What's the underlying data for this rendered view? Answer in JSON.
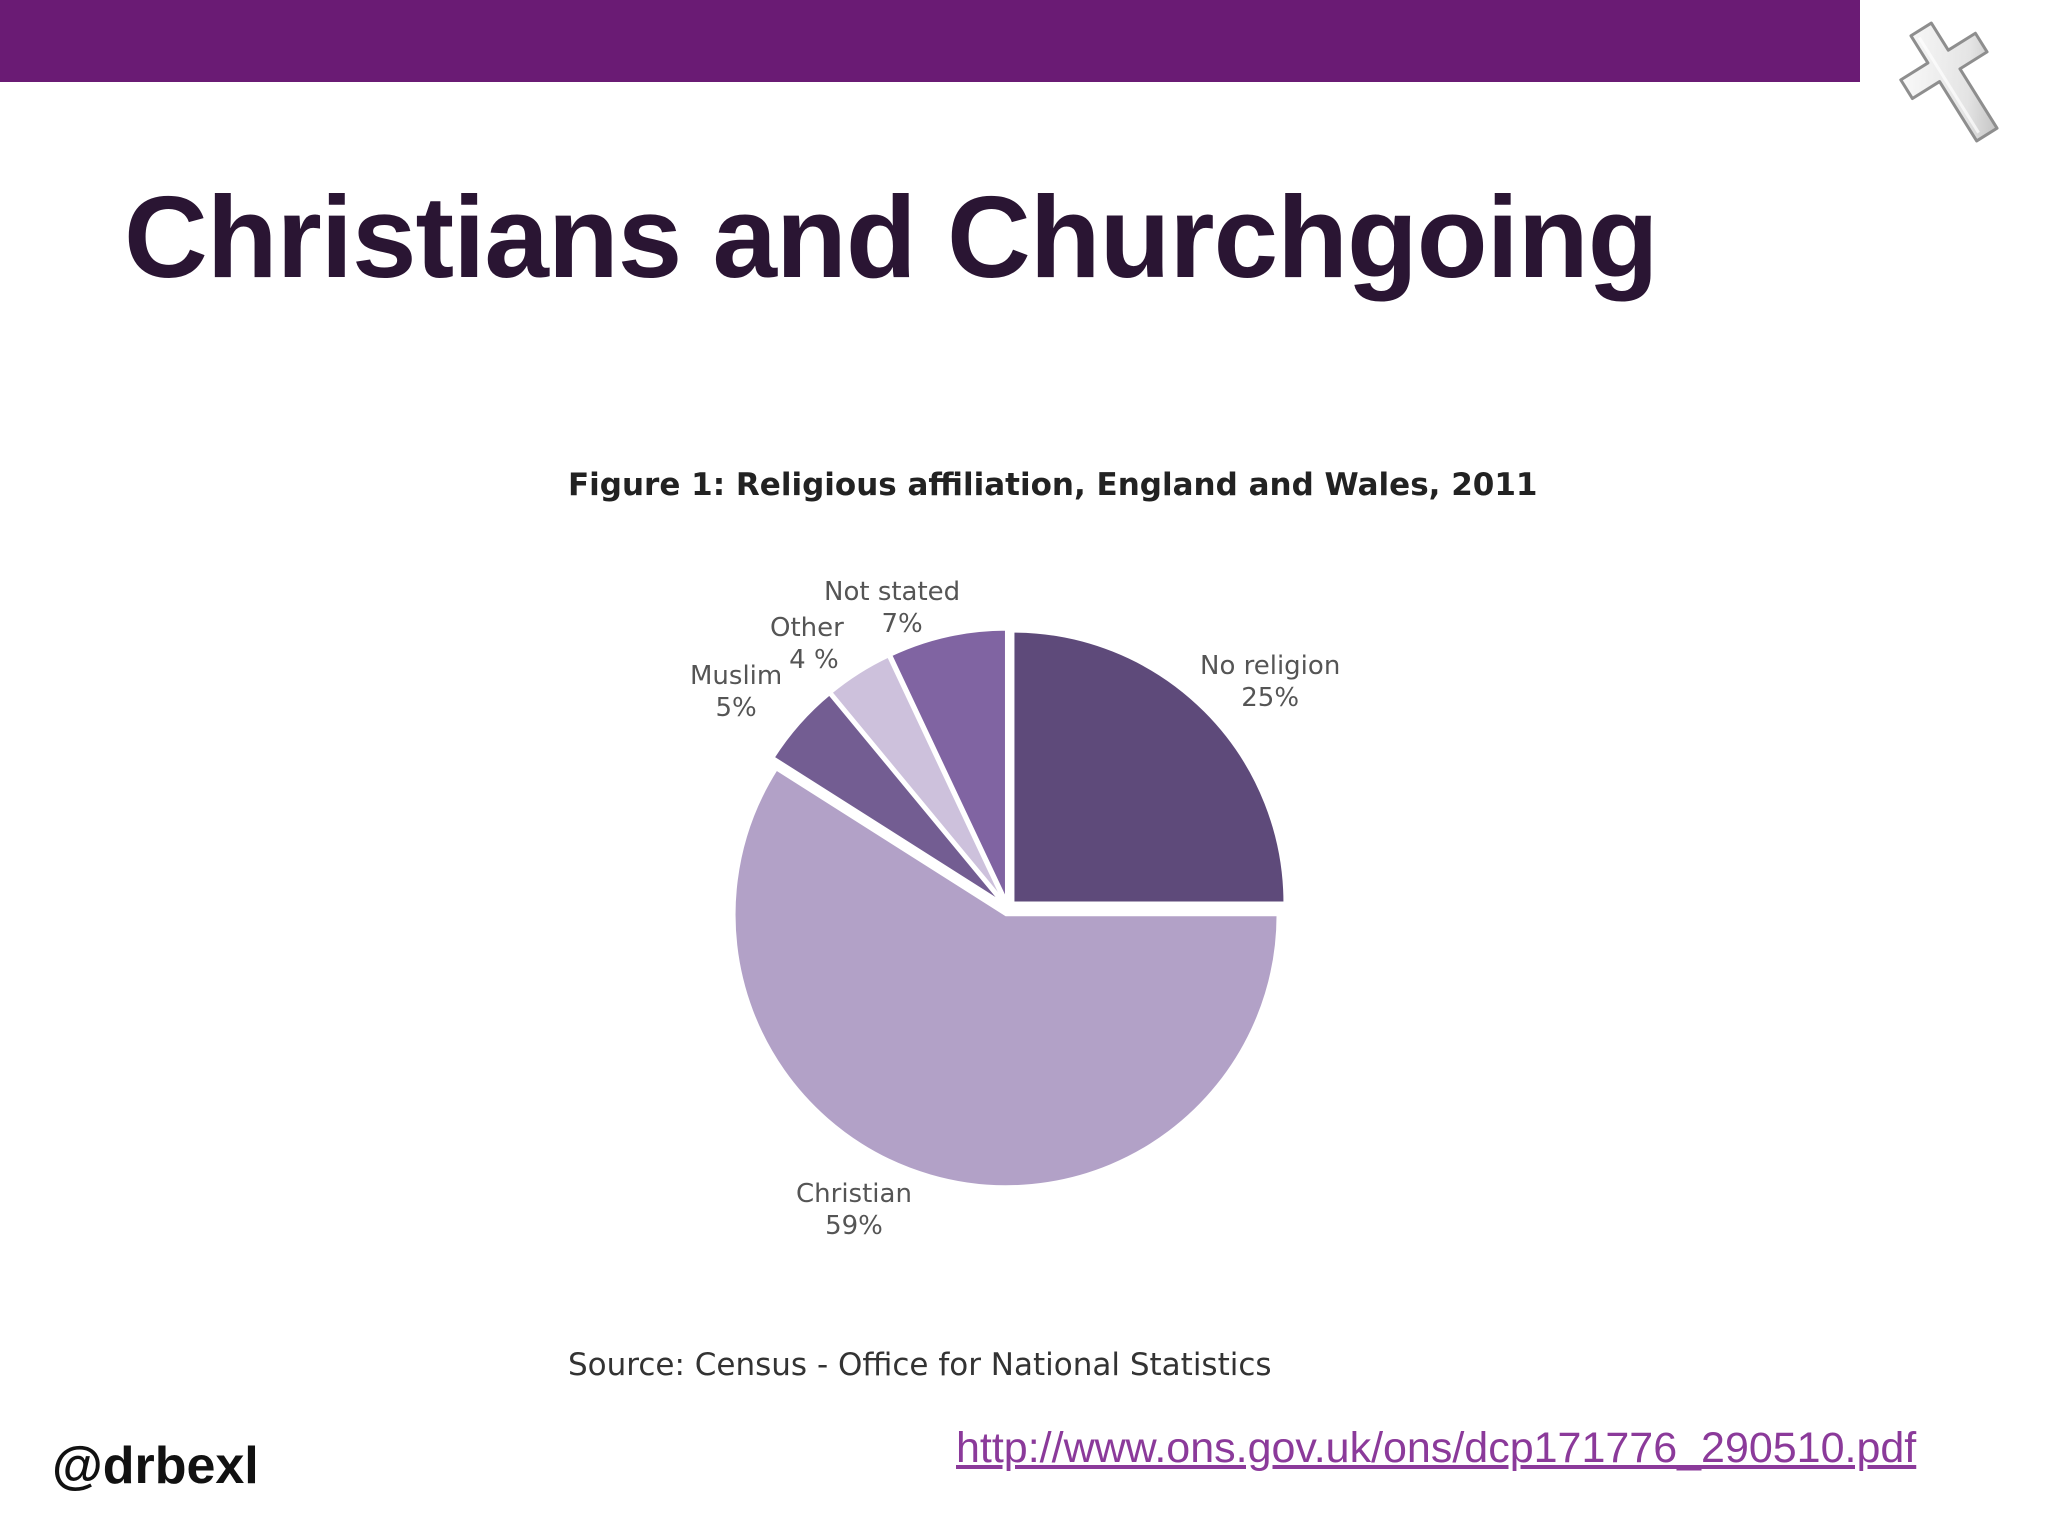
{
  "slide": {
    "title": "Christians and Churchgoing",
    "handle": "@drbexl",
    "url": "http://www.ons.gov.uk/ons/dcp171776_290510.pdf",
    "bar_color": "#6a1b74",
    "icon": "cross-icon"
  },
  "chart_data": {
    "type": "pie",
    "title": "Figure 1: Religious affiliation, England and Wales, 2011",
    "source": "Source: Census - Office for National Statistics",
    "slices": [
      {
        "name": "No religion",
        "value": 25,
        "label": "25%",
        "color": "#5e4a7a"
      },
      {
        "name": "Christian",
        "value": 59,
        "label": "59%",
        "color": "#b2a1c7"
      },
      {
        "name": "Muslim",
        "value": 5,
        "label": "5%",
        "color": "#735d92"
      },
      {
        "name": "Other",
        "value": 4,
        "label": "4 %",
        "color": "#cdc1dc"
      },
      {
        "name": "Not stated",
        "value": 7,
        "label": "7%",
        "color": "#8064a2"
      }
    ]
  }
}
